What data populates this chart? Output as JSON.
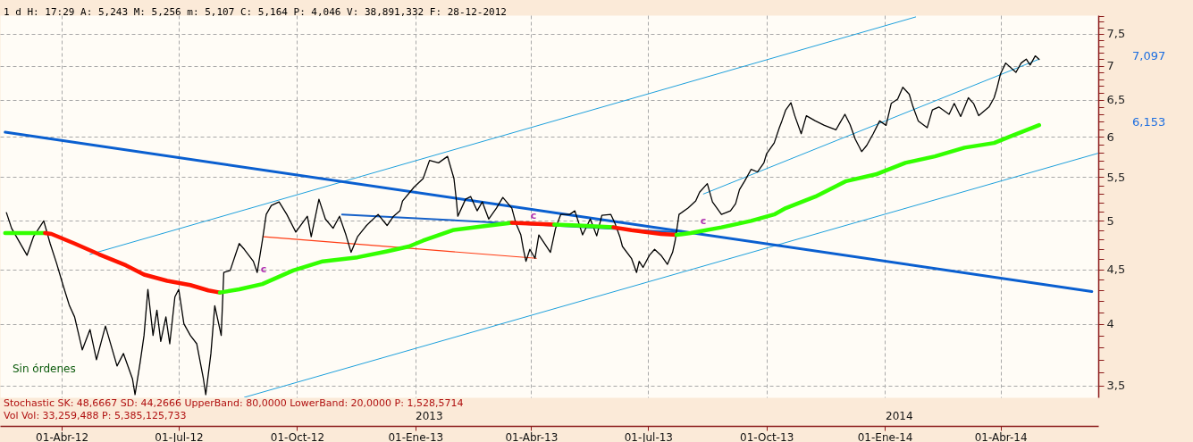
{
  "chart_data": {
    "type": "line",
    "title": "1 d H: 17:29 A: 5,243 M: 5,256 m: 5,107 C: 5,164 P: 4,046 V: 38,891,332 F: 28-12-2012",
    "log": true,
    "grid": true,
    "xlim": [
      "2012-02-13",
      "2014-06-16"
    ],
    "xticks": [
      {
        "value": "2012-04-01",
        "label": "01-Abr-12"
      },
      {
        "value": "2012-07-01",
        "label": "01-Jul-12"
      },
      {
        "value": "2012-10-01",
        "label": "01-Oct-12"
      },
      {
        "value": "2013-01-01",
        "label": "01-Ene-13"
      },
      {
        "value": "2013-04-01",
        "label": "01-Abr-13"
      },
      {
        "value": "2013-07-01",
        "label": "01-Jul-13"
      },
      {
        "value": "2013-10-01",
        "label": "01-Oct-13"
      },
      {
        "value": "2014-01-01",
        "label": "01-Ene-14"
      },
      {
        "value": "2014-04-01",
        "label": "01-Abr-14"
      }
    ],
    "ylim": [
      3.41,
      7.81
    ],
    "yticks": [
      {
        "value": 3.5,
        "label": "3,5"
      },
      {
        "value": 3.6,
        "label": null
      },
      {
        "value": 3.7,
        "label": null
      },
      {
        "value": 3.8,
        "label": null
      },
      {
        "value": 3.9,
        "label": null
      },
      4,
      {
        "value": 4.1,
        "label": null
      },
      {
        "value": 4.2,
        "label": null
      },
      {
        "value": 4.3,
        "label": null
      },
      {
        "value": 4.4,
        "label": null
      },
      {
        "value": 4.5,
        "label": "4,5"
      },
      {
        "value": 4.6,
        "label": null
      },
      {
        "value": 4.7,
        "label": null
      },
      {
        "value": 4.8,
        "label": null
      },
      {
        "value": 4.9,
        "label": null
      },
      5,
      {
        "value": 5.1,
        "label": null
      },
      {
        "value": 5.2,
        "label": null
      },
      {
        "value": 5.3,
        "label": null
      },
      {
        "value": 5.4,
        "label": null
      },
      {
        "value": 5.5,
        "label": "5,5"
      },
      {
        "value": 5.6,
        "label": null
      },
      {
        "value": 5.7,
        "label": null
      },
      {
        "value": 5.8,
        "label": null
      },
      {
        "value": 5.9,
        "label": null
      },
      6,
      {
        "value": 6.1,
        "label": null
      },
      {
        "value": 6.2,
        "label": null
      },
      {
        "value": 6.3,
        "label": null
      },
      {
        "value": 6.4,
        "label": null
      },
      {
        "value": 6.5,
        "label": "6,5"
      },
      {
        "value": 6.6,
        "label": null
      },
      {
        "value": 6.7,
        "label": null
      },
      {
        "value": 6.8,
        "label": null
      },
      {
        "value": 6.9,
        "label": null
      },
      7,
      {
        "value": 7.1,
        "label": null
      },
      {
        "value": 7.2,
        "label": null
      },
      {
        "value": 7.3,
        "label": null
      },
      {
        "value": 7.4,
        "label": null
      },
      {
        "value": 7.5,
        "label": "7,5"
      },
      {
        "value": 7.6,
        "label": null
      },
      {
        "value": 7.7,
        "label": null
      },
      {
        "value": 7.8,
        "label": null
      }
    ],
    "series": [
      {
        "color": "#1ea0dc",
        "x": [
          "2012-04-23",
          "2014-01-25"
        ],
        "values": [
          4.65,
          7.78
        ]
      },
      {
        "color": "#1ea0dc",
        "x": [
          "2012-08-21",
          "2014-06-16"
        ],
        "values": [
          3.41,
          5.79
        ]
      },
      {
        "color": "#1ea0dc",
        "x": [
          "2013-08-13",
          "2014-05-01"
        ],
        "values": [
          5.3,
          7.1
        ]
      },
      {
        "color": "#ff3c14",
        "x": [
          "2012-09-05",
          "2013-04-05"
        ],
        "values": [
          4.83,
          4.61
        ]
      },
      {
        "color": "#1560c8",
        "x": [
          "2012-11-05",
          "2013-07-23"
        ],
        "values": [
          5.07,
          4.88
        ]
      },
      {
        "color": "#0a5fd0",
        "x": [
          "2012-02-17",
          "2014-06-11"
        ],
        "values": [
          6.06,
          4.29
        ]
      },
      {
        "color": "#000000",
        "x": [
          "2012-02-18",
          "2012-02-22",
          "2012-03-05",
          "2012-03-10",
          "2012-03-18",
          "2012-03-23",
          "2012-03-28",
          "2012-04-02",
          "2012-04-07",
          "2012-04-11",
          "2012-04-17",
          "2012-04-23",
          "2012-04-28",
          "2012-05-05",
          "2012-05-14",
          "2012-05-19",
          "2012-05-26",
          "2012-05-28",
          "2012-06-01",
          "2012-06-04",
          "2012-06-07",
          "2012-06-11",
          "2012-06-14",
          "2012-06-17",
          "2012-06-21",
          "2012-06-24",
          "2012-06-28",
          "2012-07-01",
          "2012-07-05",
          "2012-07-10",
          "2012-07-15",
          "2012-07-20",
          "2012-07-22",
          "2012-07-26",
          "2012-07-29",
          "2012-08-03",
          "2012-08-05",
          "2012-08-10",
          "2012-08-17",
          "2012-08-21",
          "2012-08-28",
          "2012-08-31",
          "2012-09-04",
          "2012-09-07",
          "2012-09-11",
          "2012-09-17",
          "2012-09-23",
          "2012-09-30",
          "2012-10-09",
          "2012-10-12",
          "2012-10-18",
          "2012-10-23",
          "2012-10-29",
          "2012-11-03",
          "2012-11-08",
          "2012-11-12",
          "2012-11-17",
          "2012-11-24",
          "2012-12-03",
          "2012-12-10",
          "2012-12-15",
          "2012-12-20",
          "2012-12-22",
          "2012-12-31",
          "2013-01-07",
          "2013-01-12",
          "2013-01-19",
          "2013-01-26",
          "2013-01-31",
          "2013-02-02",
          "2013-02-03",
          "2013-02-09",
          "2013-02-13",
          "2013-02-18",
          "2013-02-22",
          "2013-02-27",
          "2013-03-05",
          "2013-03-10",
          "2013-03-17",
          "2013-03-20",
          "2013-03-24",
          "2013-03-26",
          "2013-03-28",
          "2013-03-31",
          "2013-04-04",
          "2013-04-07",
          "2013-04-16",
          "2013-04-20",
          "2013-04-24",
          "2013-05-01",
          "2013-05-05",
          "2013-05-11",
          "2013-05-17",
          "2013-05-22",
          "2013-05-26",
          "2013-06-02",
          "2013-06-05",
          "2013-06-09",
          "2013-06-11",
          "2013-06-18",
          "2013-06-22",
          "2013-06-24",
          "2013-06-27",
          "2013-07-02",
          "2013-07-06",
          "2013-07-11",
          "2013-07-16",
          "2013-07-20",
          "2013-07-22",
          "2013-07-25",
          "2013-08-01",
          "2013-08-07",
          "2013-08-10",
          "2013-08-16",
          "2013-08-20",
          "2013-08-27",
          "2013-09-03",
          "2013-09-07",
          "2013-09-10",
          "2013-09-14",
          "2013-09-19",
          "2013-09-24",
          "2013-09-29",
          "2013-10-01",
          "2013-10-07",
          "2013-10-11",
          "2013-10-13",
          "2013-10-16",
          "2013-10-20",
          "2013-10-23",
          "2013-10-28",
          "2013-11-01",
          "2013-11-08",
          "2013-11-15",
          "2013-11-24",
          "2013-11-27",
          "2013-12-01",
          "2013-12-05",
          "2013-12-09",
          "2013-12-14",
          "2013-12-18",
          "2013-12-23",
          "2013-12-28",
          "2014-01-02",
          "2014-01-06",
          "2014-01-11",
          "2014-01-15",
          "2014-01-20",
          "2014-01-23",
          "2014-01-27",
          "2014-02-03",
          "2014-02-07",
          "2014-02-12",
          "2014-02-20",
          "2014-02-24",
          "2014-03-01",
          "2014-03-07",
          "2014-03-11",
          "2014-03-15",
          "2014-03-23",
          "2014-03-27",
          "2014-03-29",
          "2014-04-01",
          "2014-04-05",
          "2014-04-13",
          "2014-04-17",
          "2014-04-21",
          "2014-04-24",
          "2014-04-28",
          "2014-05-01"
        ],
        "values": [
          5.09,
          4.92,
          4.64,
          4.83,
          5.0,
          4.76,
          4.56,
          4.35,
          4.16,
          4.06,
          3.78,
          3.95,
          3.7,
          3.98,
          3.65,
          3.75,
          3.55,
          3.43,
          3.68,
          3.9,
          4.31,
          3.9,
          4.12,
          3.85,
          4.06,
          3.83,
          4.24,
          4.31,
          4.0,
          3.9,
          3.83,
          3.56,
          3.43,
          3.75,
          4.16,
          3.9,
          4.47,
          4.49,
          4.76,
          4.7,
          4.58,
          4.47,
          4.79,
          5.07,
          5.17,
          5.21,
          5.07,
          4.88,
          5.05,
          4.83,
          5.24,
          5.02,
          4.92,
          5.05,
          4.85,
          4.67,
          4.83,
          4.95,
          5.07,
          4.95,
          5.05,
          5.11,
          5.22,
          5.38,
          5.48,
          5.7,
          5.67,
          5.75,
          5.48,
          5.21,
          5.05,
          5.24,
          5.27,
          5.11,
          5.21,
          5.02,
          5.14,
          5.26,
          5.14,
          4.98,
          4.85,
          4.7,
          4.58,
          4.7,
          4.61,
          4.85,
          4.67,
          4.92,
          5.07,
          5.07,
          5.11,
          4.85,
          5.02,
          4.84,
          5.06,
          5.07,
          4.98,
          4.83,
          4.73,
          4.61,
          4.47,
          4.58,
          4.52,
          4.64,
          4.7,
          4.64,
          4.55,
          4.67,
          4.79,
          5.07,
          5.14,
          5.22,
          5.32,
          5.42,
          5.21,
          5.07,
          5.11,
          5.19,
          5.35,
          5.45,
          5.59,
          5.56,
          5.67,
          5.78,
          5.92,
          6.12,
          6.21,
          6.36,
          6.46,
          6.28,
          6.04,
          6.28,
          6.21,
          6.15,
          6.09,
          6.18,
          6.3,
          6.16,
          5.97,
          5.81,
          5.89,
          6.04,
          6.21,
          6.15,
          6.45,
          6.51,
          6.68,
          6.58,
          6.4,
          6.21,
          6.12,
          6.36,
          6.4,
          6.3,
          6.45,
          6.27,
          6.53,
          6.45,
          6.28,
          6.4,
          6.53,
          6.65,
          6.88,
          7.04,
          6.9,
          7.04,
          7.1,
          7.01,
          7.15,
          7.097
        ]
      },
      {
        "color": "#33ff00",
        "x": [
          "2012-02-17",
          "2012-03-19"
        ],
        "values": [
          4.87,
          4.87
        ]
      },
      {
        "color": "#ff1400",
        "x": [
          "2012-03-19",
          "2012-03-24",
          "2012-04-11",
          "2012-04-30",
          "2012-05-21",
          "2012-06-04",
          "2012-06-22",
          "2012-07-10",
          "2012-07-24",
          "2012-08-02"
        ],
        "values": [
          4.87,
          4.86,
          4.76,
          4.65,
          4.54,
          4.45,
          4.39,
          4.35,
          4.3,
          4.28
        ]
      },
      {
        "color": "#33ff00",
        "x": [
          "2012-08-02",
          "2012-08-17",
          "2012-09-04",
          "2012-09-17",
          "2012-09-28",
          "2012-10-21",
          "2012-11-17",
          "2012-12-10",
          "2012-12-27",
          "2013-01-07",
          "2013-01-30",
          "2013-02-22",
          "2013-03-17"
        ],
        "values": [
          4.28,
          4.31,
          4.36,
          4.43,
          4.49,
          4.58,
          4.62,
          4.68,
          4.73,
          4.79,
          4.9,
          4.94,
          4.98
        ]
      },
      {
        "color": "#ff1400",
        "x": [
          "2013-03-17",
          "2013-04-19"
        ],
        "values": [
          4.98,
          4.96
        ]
      },
      {
        "color": "#33ff00",
        "x": [
          "2013-04-19",
          "2013-05-07",
          "2013-06-04"
        ],
        "values": [
          4.96,
          4.95,
          4.93
        ]
      },
      {
        "color": "#ff1400",
        "x": [
          "2013-06-04",
          "2013-06-18",
          "2013-07-11",
          "2013-07-23"
        ],
        "values": [
          4.93,
          4.9,
          4.86,
          4.85
        ]
      },
      {
        "color": "#33ff00",
        "x": [
          "2013-07-23",
          "2013-08-03",
          "2013-08-27",
          "2013-09-19",
          "2013-10-07",
          "2013-10-16",
          "2013-11-08",
          "2013-12-02",
          "2013-12-25",
          "2014-01-17",
          "2014-02-09",
          "2014-03-04",
          "2014-03-27",
          "2014-04-08",
          "2014-05-01"
        ],
        "values": [
          4.85,
          4.87,
          4.93,
          5.0,
          5.07,
          5.14,
          5.27,
          5.45,
          5.53,
          5.67,
          5.75,
          5.86,
          5.92,
          6.0,
          6.153
        ]
      }
    ],
    "annotations": [
      "c",
      "c",
      "c",
      "7,097",
      "6,153",
      "2013",
      "2014",
      "Stochastic SK: 48,6667 SD: 44,2666 UpperBand: 80,0000 LowerBand: 20,0000 P: 1,528,5714",
      "Vol Vol: 33,259,488 P: 5,385,125,733",
      "Sin órdenes"
    ]
  }
}
